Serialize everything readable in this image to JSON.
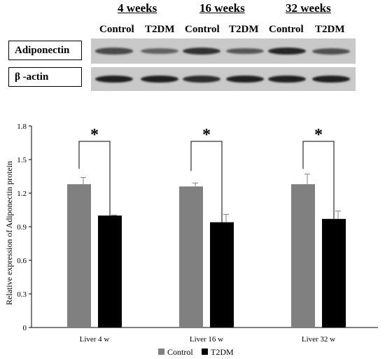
{
  "blot": {
    "weeks": [
      "4 weeks",
      "16 weeks",
      "32 weeks"
    ],
    "groups": [
      "Control",
      "T2DM",
      "Control",
      "T2DM",
      "Control",
      "T2DM"
    ],
    "rows": [
      {
        "label": "Adiponectin",
        "band_intensity": [
          0.55,
          0.35,
          0.75,
          0.45,
          0.85,
          0.5
        ]
      },
      {
        "label": "β -actin",
        "band_intensity": [
          0.9,
          0.9,
          0.8,
          0.9,
          0.9,
          0.9
        ]
      }
    ]
  },
  "chart_data": {
    "type": "bar",
    "categories": [
      "Liver 4 w",
      "Liver 16 w",
      "Liver 32 w"
    ],
    "series": [
      {
        "name": "Control",
        "color": "#808080",
        "values": [
          1.28,
          1.26,
          1.28
        ],
        "errors": [
          0.06,
          0.03,
          0.09
        ]
      },
      {
        "name": "T2DM",
        "color": "#000000",
        "values": [
          1.0,
          0.94,
          0.97
        ],
        "errors": [
          0.005,
          0.07,
          0.07
        ]
      }
    ],
    "ylabel": "Relative expression of Adiponectin protein",
    "ylim": [
      0,
      1.8
    ],
    "yticks": [
      "0",
      "0.3",
      "0.6",
      "0.9",
      "1.2",
      "1.5",
      "1.8"
    ],
    "annotations": [
      "*",
      "*",
      "*"
    ],
    "grid": false,
    "legend_position": "bottom"
  }
}
